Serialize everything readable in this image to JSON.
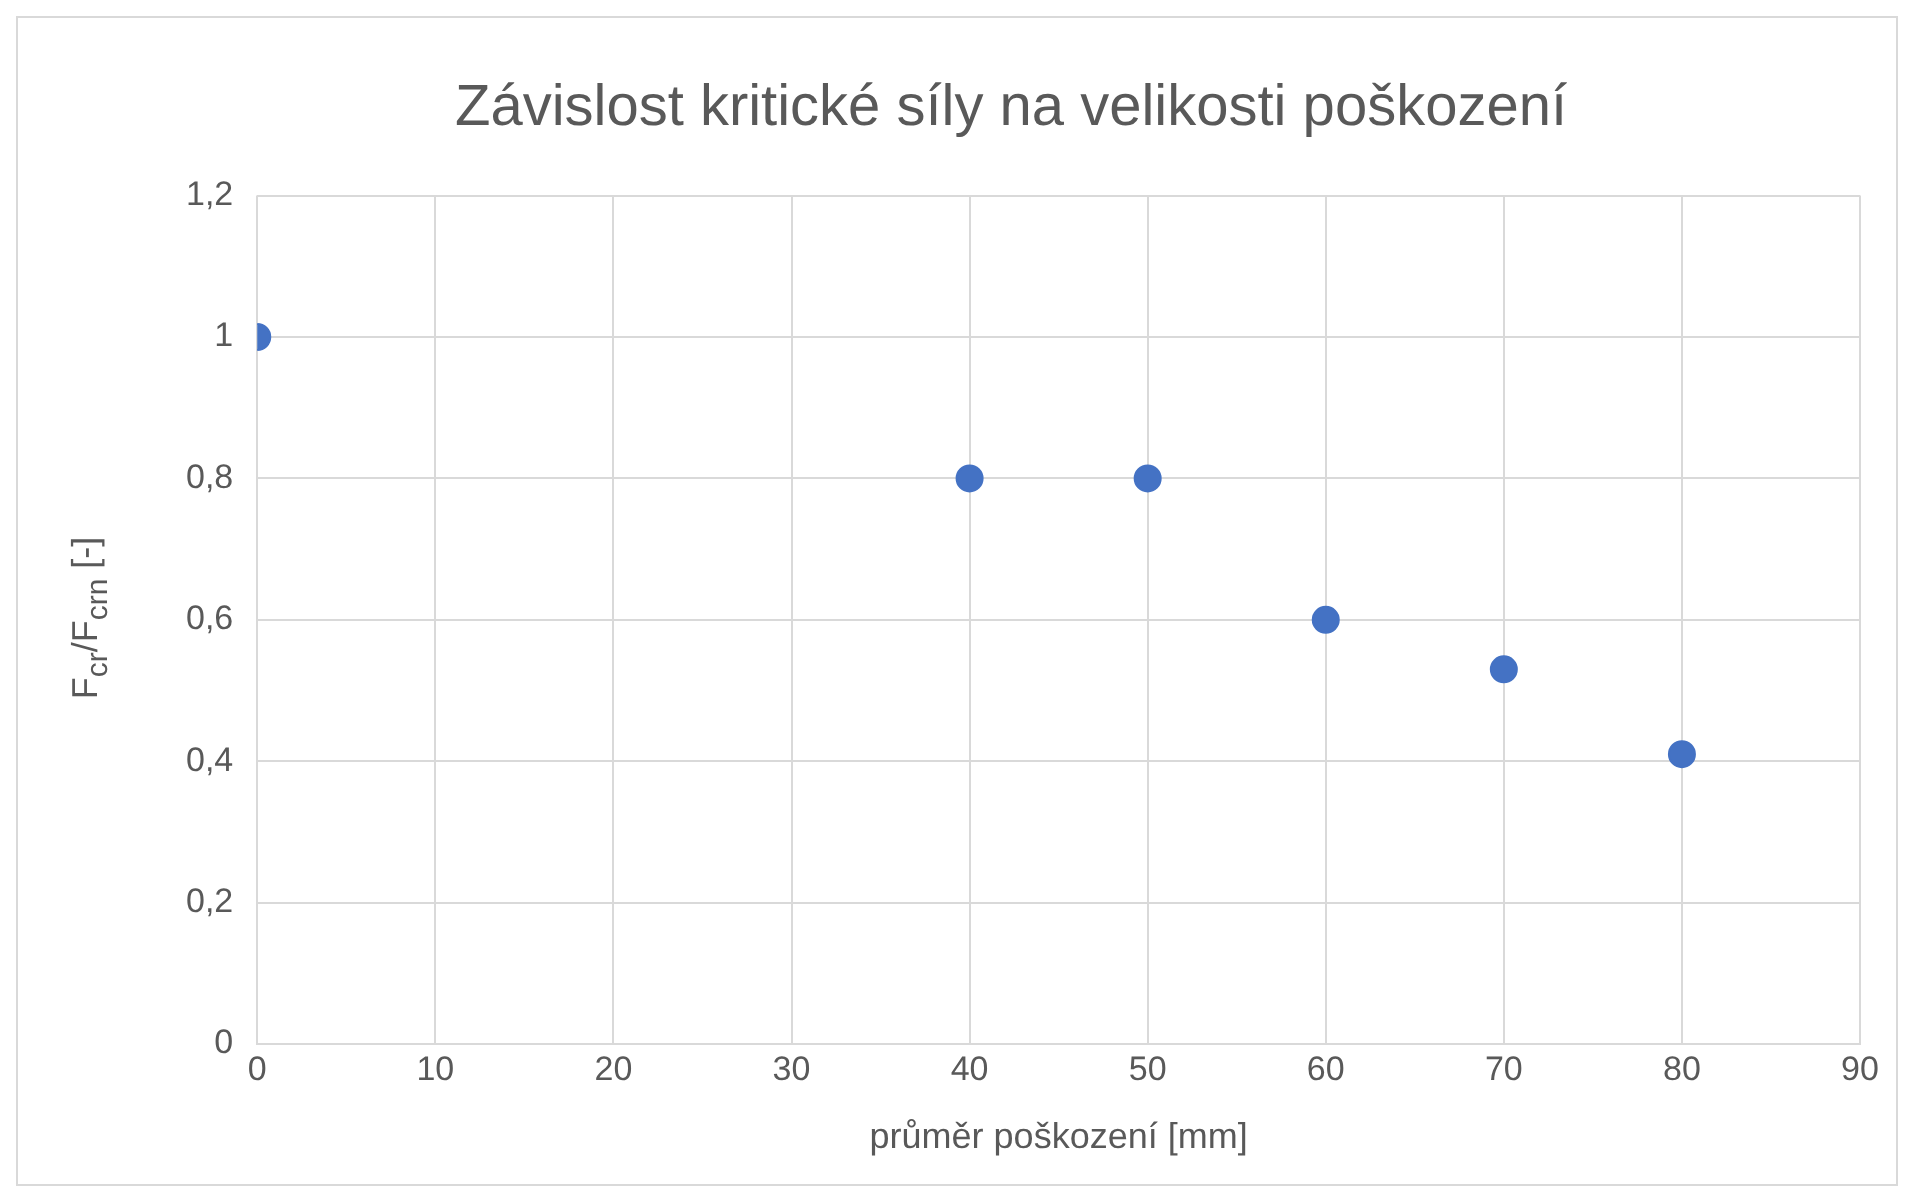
{
  "chart_data": {
    "type": "scatter",
    "title": "Závislost kritické síly na velikosti poškození",
    "xlabel": "průměr poškození [mm]",
    "ylabel": "F$_{cr}$/F$_{crn}$  [-]",
    "x": [
      0,
      40,
      50,
      60,
      70,
      80
    ],
    "series": [
      {
        "color": "#4472c4",
        "values": [
          1.0,
          0.8,
          0.8,
          0.6,
          0.53,
          0.41
        ]
      }
    ],
    "xlim": [
      0,
      90
    ],
    "xticks": [
      0,
      10,
      20,
      30,
      40,
      50,
      60,
      70,
      80,
      90
    ],
    "ylim": [
      0,
      1.2
    ],
    "yticks": [
      0,
      {
        "value": 0.2,
        "label": "0,2"
      },
      {
        "value": 0.4,
        "label": "0,4"
      },
      {
        "value": 0.6,
        "label": "0,6"
      },
      {
        "value": 0.8,
        "label": "0,8"
      },
      1,
      {
        "value": 1.2,
        "label": "1,2"
      }
    ],
    "grid": true,
    "legend": false,
    "marker": "circle"
  }
}
